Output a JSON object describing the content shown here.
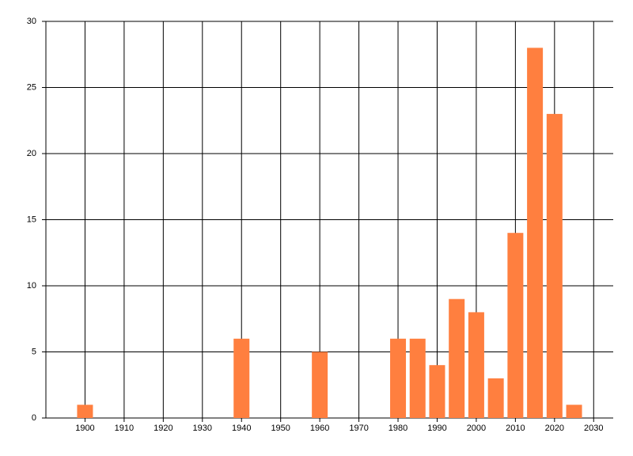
{
  "chart_data": {
    "type": "bar",
    "x": [
      1900,
      1940,
      1960,
      1980,
      1985,
      1990,
      1995,
      2000,
      2005,
      2010,
      2015,
      2020,
      2025
    ],
    "values": [
      1,
      6,
      5,
      6,
      6,
      4,
      9,
      8,
      3,
      14,
      28,
      23,
      1
    ],
    "color": "#ff7f3f",
    "xlim": [
      1890,
      2035
    ],
    "xticks": [
      1900,
      1910,
      1920,
      1930,
      1940,
      1950,
      1960,
      1970,
      1980,
      1990,
      2000,
      2010,
      2020,
      2030
    ],
    "ylim": [
      0,
      30
    ],
    "yticks": [
      0,
      5,
      10,
      15,
      20,
      25,
      30
    ],
    "grid": true
  }
}
